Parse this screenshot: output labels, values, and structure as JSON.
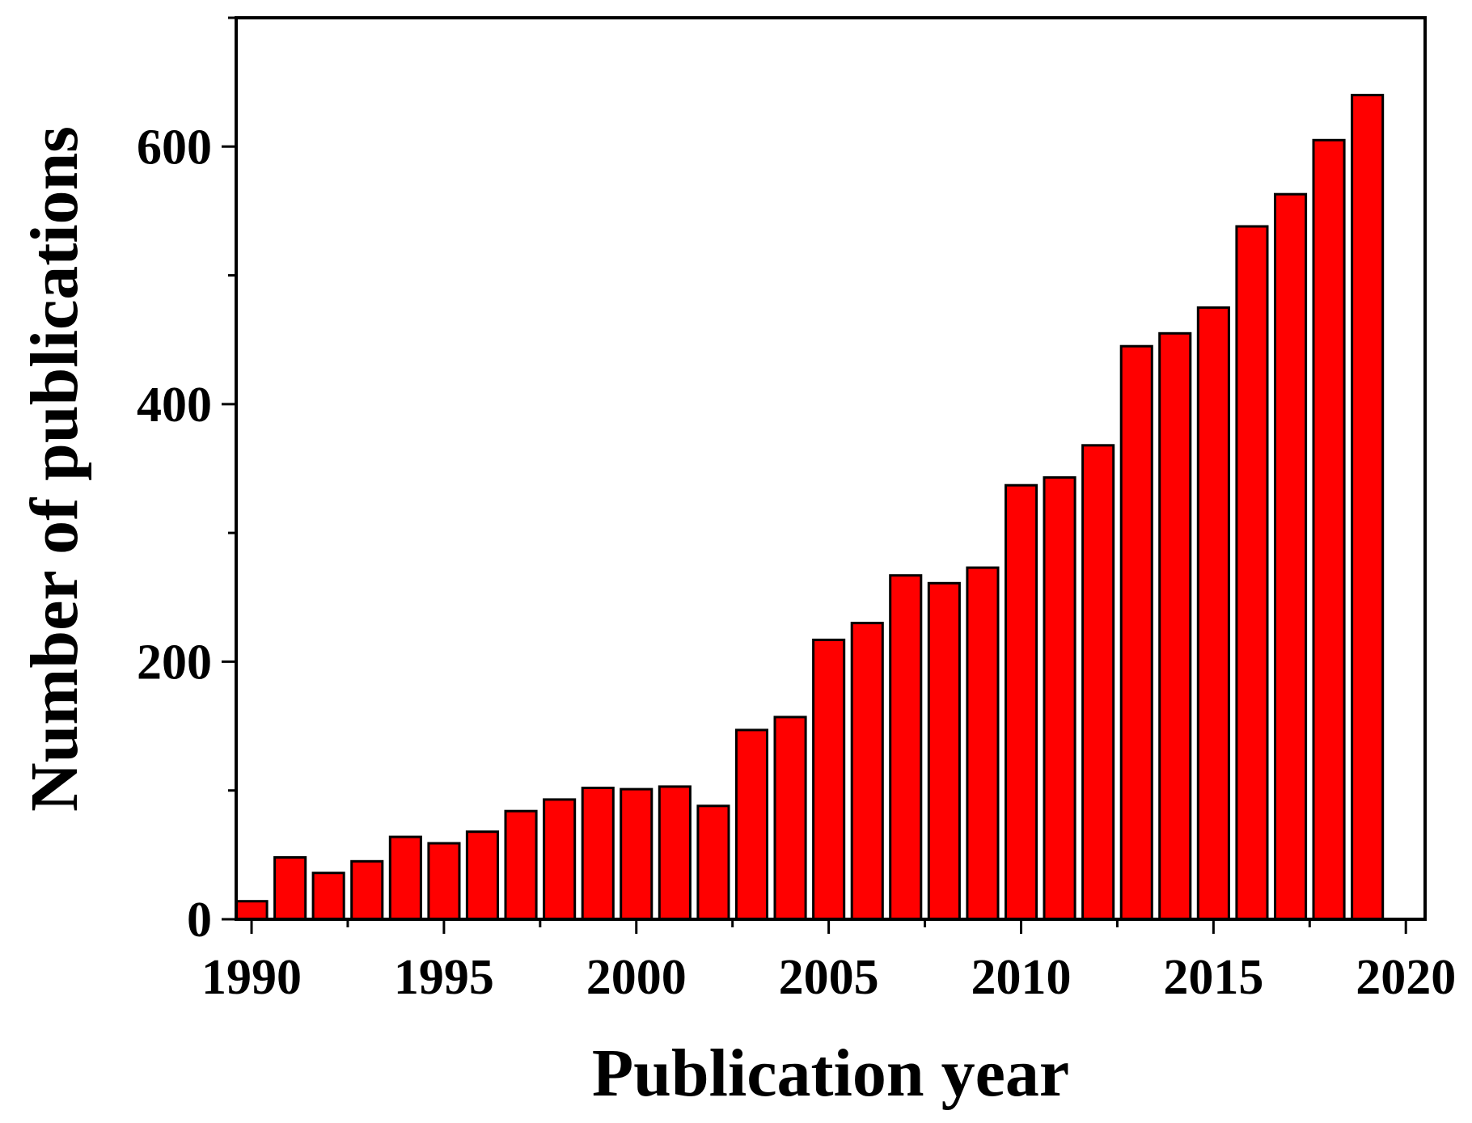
{
  "chart_data": {
    "type": "bar",
    "title": "",
    "xlabel": "Publication year",
    "ylabel": "Number of publications",
    "x": [
      1990,
      1991,
      1992,
      1993,
      1994,
      1995,
      1996,
      1997,
      1998,
      1999,
      2000,
      2001,
      2002,
      2003,
      2004,
      2005,
      2006,
      2007,
      2008,
      2009,
      2010,
      2011,
      2012,
      2013,
      2014,
      2015,
      2016,
      2017,
      2018,
      2019
    ],
    "values": [
      14,
      48,
      36,
      45,
      64,
      59,
      68,
      84,
      93,
      102,
      101,
      103,
      88,
      147,
      157,
      217,
      230,
      267,
      261,
      273,
      337,
      343,
      368,
      445,
      455,
      475,
      538,
      563,
      605,
      640
    ],
    "xlim": [
      1989.6,
      2020.5
    ],
    "ylim": [
      0,
      700
    ],
    "x_ticks": [
      "1990",
      "1995",
      "2000",
      "2005",
      "2010",
      "2015",
      "2020"
    ],
    "y_ticks": [
      "0",
      "200",
      "400",
      "600"
    ],
    "bar_color": "#ff0000",
    "grid": false,
    "legend": "none"
  }
}
